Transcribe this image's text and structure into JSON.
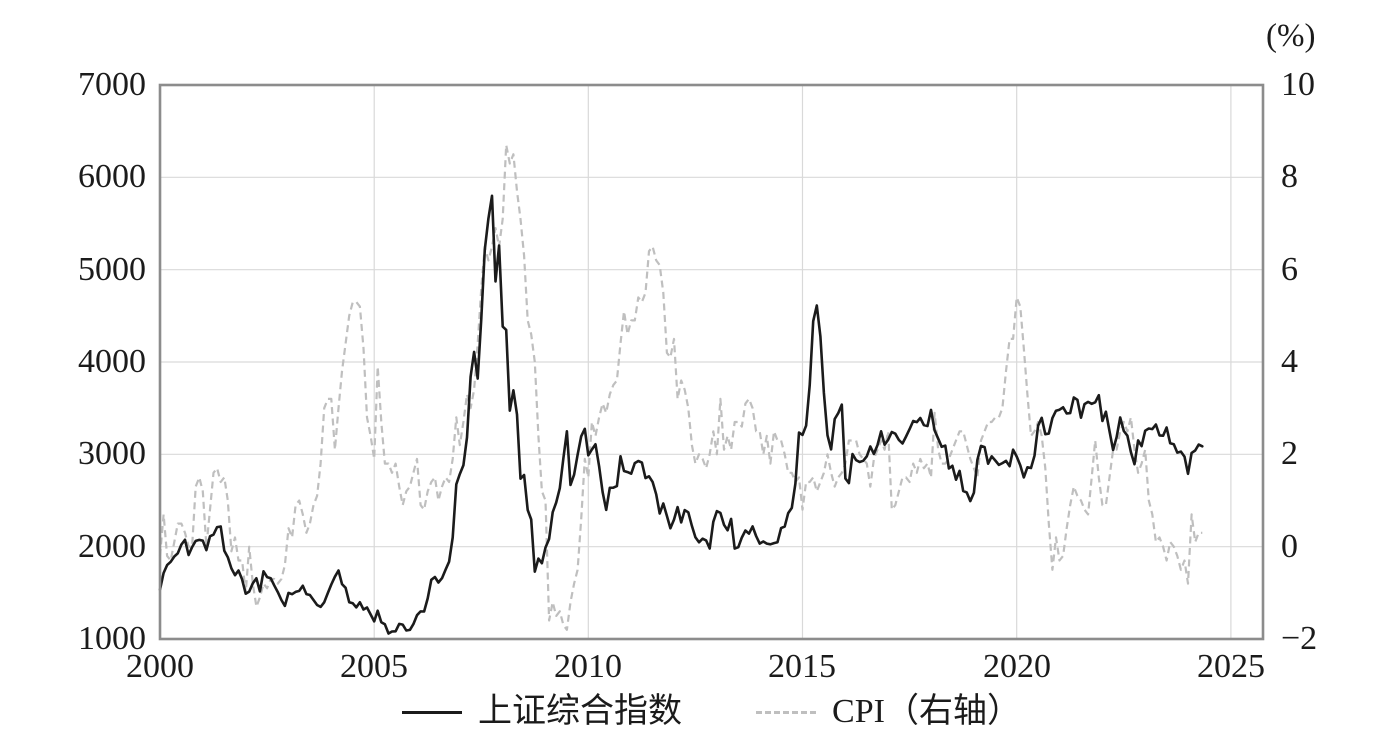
{
  "legend": {
    "position": "bottom",
    "items": [
      {
        "label": "上证综合指数",
        "style": "solid"
      },
      {
        "label": "CPI（右轴）",
        "style": "dashed"
      }
    ]
  },
  "chart_data": {
    "type": "line",
    "title": "",
    "frequency": "monthly",
    "start_year": 2000,
    "grid": true,
    "legend_position": "bottom",
    "style": {
      "grid_color": "#d9d9d9",
      "border_color": "#8c8c8c",
      "text_color": "#1b1b1b",
      "background": "#ffffff"
    },
    "x_axis": {
      "range": [
        2000,
        2025.75
      ],
      "tick_values": [
        2000,
        2005,
        2010,
        2015,
        2020,
        2025
      ],
      "tick_labels": [
        "2000",
        "2005",
        "2010",
        "2015",
        "2020",
        "2025"
      ]
    },
    "left_axis": {
      "range": [
        1000,
        7000
      ],
      "tick_values": [
        7000,
        6000,
        5000,
        4000,
        3000,
        2000,
        1000
      ],
      "tick_labels": [
        "7000",
        "6000",
        "5000",
        "4000",
        "3000",
        "2000",
        "1000"
      ]
    },
    "right_axis": {
      "unit": "(%)",
      "range": [
        -2,
        10
      ],
      "tick_values": [
        10,
        8,
        6,
        4,
        2,
        0,
        -2
      ],
      "tick_labels": [
        "10",
        "8",
        "6",
        "4",
        "2",
        "0",
        "−2"
      ]
    },
    "series": [
      {
        "id": "sse",
        "name": "上证综合指数",
        "axis": "left",
        "line": "solid",
        "color": "#1b1b1b",
        "width": 2.6,
        "values": [
          1535,
          1715,
          1800,
          1836,
          1894,
          1928,
          2023,
          2074,
          1910,
          1995,
          2062,
          2073,
          2065,
          1963,
          2112,
          2131,
          2212,
          2218,
          1955,
          1886,
          1765,
          1691,
          1742,
          1646,
          1491,
          1513,
          1603,
          1657,
          1516,
          1733,
          1670,
          1659,
          1582,
          1508,
          1422,
          1358,
          1499,
          1485,
          1510,
          1521,
          1577,
          1486,
          1477,
          1422,
          1368,
          1348,
          1397,
          1497,
          1590,
          1675,
          1742,
          1595,
          1555,
          1399,
          1387,
          1342,
          1397,
          1320,
          1341,
          1266,
          1191,
          1306,
          1181,
          1159,
          1060,
          1081,
          1083,
          1163,
          1156,
          1092,
          1099,
          1161,
          1258,
          1299,
          1298,
          1440,
          1641,
          1672,
          1612,
          1658,
          1752,
          1837,
          2099,
          2675,
          2786,
          2881,
          3183,
          3841,
          4109,
          3820,
          4471,
          5218,
          5552,
          5800,
          4872,
          5262,
          4383,
          4348,
          3473,
          3693,
          3433,
          2736,
          2776,
          2397,
          2294,
          1729,
          1871,
          1821,
          1991,
          2083,
          2373,
          2478,
          2633,
          2959,
          3250,
          2668,
          2779,
          2995,
          3195,
          3277,
          2989,
          3052,
          3109,
          2871,
          2592,
          2398,
          2638,
          2639,
          2656,
          2979,
          2820,
          2808,
          2790,
          2905,
          2928,
          2911,
          2743,
          2762,
          2701,
          2567,
          2359,
          2468,
          2333,
          2199,
          2293,
          2428,
          2263,
          2396,
          2372,
          2225,
          2103,
          2047,
          2086,
          2068,
          1980,
          2269,
          2385,
          2366,
          2237,
          2177,
          2301,
          1979,
          1994,
          2098,
          2175,
          2141,
          2220,
          2116,
          2033,
          2056,
          2033,
          2026,
          2039,
          2048,
          2201,
          2217,
          2364,
          2420,
          2683,
          3235,
          3210,
          3310,
          3748,
          4442,
          4612,
          4277,
          3664,
          3206,
          3053,
          3383,
          3445,
          3539,
          2738,
          2688,
          3004,
          2938,
          2917,
          2930,
          2979,
          3085,
          3005,
          3100,
          3250,
          3104,
          3159,
          3242,
          3223,
          3155,
          3117,
          3192,
          3273,
          3361,
          3349,
          3393,
          3317,
          3307,
          3481,
          3259,
          3169,
          3082,
          3095,
          2847,
          2876,
          2725,
          2821,
          2603,
          2588,
          2494,
          2585,
          2941,
          3091,
          3078,
          2899,
          2979,
          2933,
          2886,
          2905,
          2929,
          2872,
          3050,
          2977,
          2880,
          2750,
          2860,
          2852,
          2985,
          3310,
          3396,
          3218,
          3225,
          3392,
          3473,
          3483,
          3509,
          3442,
          3447,
          3615,
          3591,
          3397,
          3544,
          3568,
          3547,
          3564,
          3640,
          3361,
          3462,
          3252,
          3047,
          3186,
          3399,
          3253,
          3202,
          3024,
          2893,
          3151,
          3089,
          3256,
          3280,
          3273,
          3323,
          3205,
          3202,
          3291,
          3120,
          3110,
          3019,
          3030,
          2975,
          2789,
          3015,
          3041,
          3105,
          3087
        ]
      },
      {
        "id": "cpi",
        "name": "CPI（右轴）",
        "axis": "right",
        "line": "dashed",
        "dash": "7 4.5",
        "color": "#bfbfbf",
        "width": 2.2,
        "values": [
          -0.2,
          0.7,
          -0.2,
          -0.3,
          0.1,
          0.5,
          0.5,
          0.3,
          0.0,
          0.0,
          1.3,
          1.5,
          1.2,
          0.0,
          0.8,
          1.6,
          1.7,
          1.4,
          1.5,
          1.0,
          -0.1,
          0.2,
          -0.3,
          -0.3,
          -1.0,
          0.0,
          -0.8,
          -1.3,
          -1.1,
          -0.8,
          -0.9,
          -0.7,
          -0.7,
          -0.8,
          -0.7,
          -0.4,
          0.4,
          0.2,
          0.9,
          1.0,
          0.7,
          0.3,
          0.5,
          0.9,
          1.1,
          1.8,
          3.0,
          3.2,
          3.2,
          2.1,
          3.0,
          3.8,
          4.4,
          5.0,
          5.3,
          5.3,
          5.2,
          4.3,
          2.8,
          2.4,
          1.9,
          3.9,
          2.7,
          1.8,
          1.8,
          1.6,
          1.8,
          1.3,
          0.9,
          1.2,
          1.3,
          1.6,
          1.9,
          0.9,
          0.8,
          1.2,
          1.4,
          1.5,
          1.0,
          1.3,
          1.5,
          1.4,
          1.9,
          2.8,
          2.2,
          2.7,
          3.3,
          3.0,
          3.4,
          4.4,
          5.6,
          6.5,
          6.2,
          6.5,
          6.9,
          6.5,
          7.1,
          8.7,
          8.3,
          8.5,
          7.7,
          7.1,
          6.3,
          4.9,
          4.6,
          4.0,
          2.4,
          1.2,
          1.0,
          -1.6,
          -1.2,
          -1.5,
          -1.4,
          -1.7,
          -1.8,
          -1.2,
          -0.8,
          -0.5,
          0.6,
          1.9,
          1.5,
          2.7,
          2.4,
          2.8,
          3.1,
          2.9,
          3.3,
          3.5,
          3.6,
          4.4,
          5.1,
          4.6,
          4.9,
          4.9,
          5.4,
          5.3,
          5.5,
          6.4,
          6.5,
          6.2,
          6.1,
          5.5,
          4.2,
          4.1,
          4.5,
          3.2,
          3.6,
          3.4,
          3.0,
          2.2,
          1.8,
          2.0,
          1.9,
          1.7,
          2.0,
          2.5,
          2.0,
          3.2,
          2.1,
          2.4,
          2.1,
          2.7,
          2.7,
          2.6,
          3.1,
          3.2,
          3.0,
          2.5,
          2.5,
          2.0,
          2.4,
          1.8,
          2.5,
          2.3,
          2.3,
          2.0,
          1.6,
          1.6,
          1.4,
          1.5,
          0.8,
          1.4,
          1.4,
          1.5,
          1.2,
          1.4,
          1.6,
          2.0,
          1.6,
          1.3,
          1.5,
          1.6,
          1.8,
          2.3,
          2.3,
          2.3,
          2.0,
          1.9,
          1.8,
          1.3,
          1.9,
          2.1,
          2.3,
          2.1,
          2.5,
          0.8,
          0.9,
          1.2,
          1.5,
          1.5,
          1.4,
          1.8,
          1.6,
          1.9,
          1.7,
          1.8,
          1.5,
          2.9,
          2.1,
          1.8,
          1.8,
          1.9,
          2.1,
          2.3,
          2.5,
          2.5,
          2.2,
          1.9,
          1.7,
          1.5,
          2.3,
          2.5,
          2.7,
          2.7,
          2.8,
          2.8,
          3.0,
          3.8,
          4.5,
          4.5,
          5.4,
          5.2,
          4.3,
          3.3,
          2.4,
          2.5,
          2.7,
          2.4,
          1.7,
          0.5,
          -0.5,
          0.2,
          -0.3,
          -0.2,
          0.4,
          0.9,
          1.3,
          1.1,
          1.0,
          0.8,
          0.7,
          1.5,
          2.3,
          1.5,
          0.9,
          0.9,
          1.5,
          2.1,
          2.1,
          2.5,
          2.7,
          2.5,
          2.8,
          2.1,
          1.6,
          1.8,
          2.1,
          1.0,
          0.7,
          0.1,
          0.2,
          0.0,
          -0.3,
          0.1,
          0.0,
          -0.2,
          -0.5,
          -0.3,
          -0.8,
          0.7,
          0.1,
          0.3,
          0.3
        ]
      }
    ]
  }
}
